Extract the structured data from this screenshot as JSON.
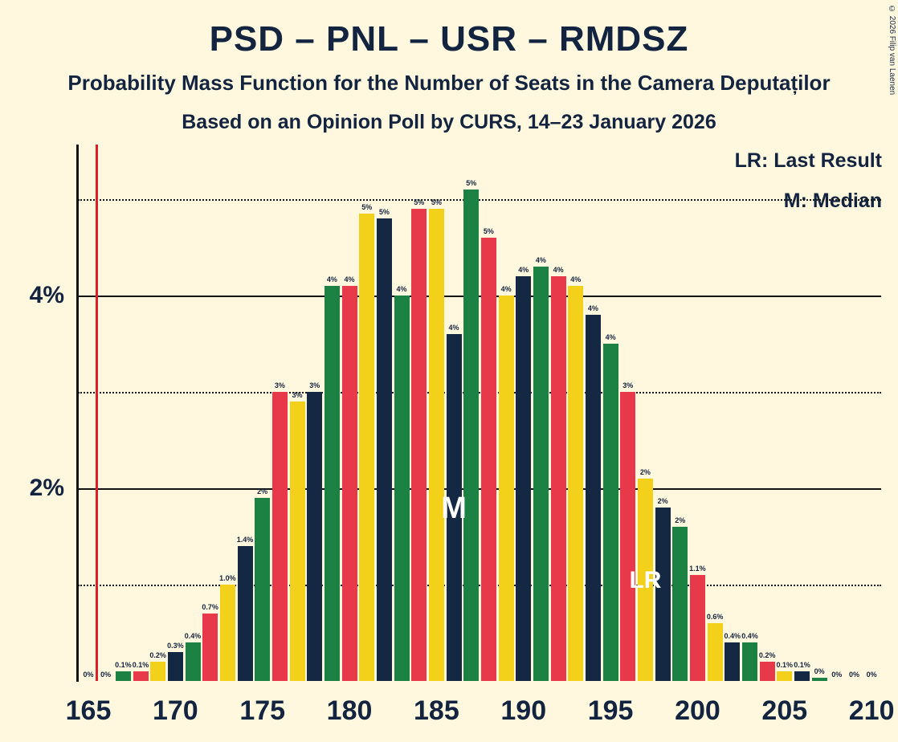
{
  "title": "PSD – PNL – USR – RMDSZ",
  "subtitle": "Probability Mass Function for the Number of Seats in the Camera Deputaților",
  "source_line": "Based on an Opinion Poll by CURS, 14–23 January 2026",
  "copyright": "© 2026 Filip van Laenen",
  "legend": {
    "lr": "LR: Last Result",
    "m": "M: Median"
  },
  "chart_data": {
    "type": "bar",
    "title": "PSD – PNL – USR – RMDSZ — Probability Mass Function for the Number of Seats in the Camera Deputaților",
    "xlabel": "",
    "ylabel": "",
    "ylim": [
      0,
      5.57
    ],
    "x_ticks": [
      165,
      170,
      175,
      180,
      185,
      190,
      195,
      200,
      205,
      210
    ],
    "y_solid_ticks": [
      {
        "value": 2,
        "label": "2%"
      },
      {
        "value": 4,
        "label": "4%"
      }
    ],
    "y_dotted_ticks": [
      1,
      3,
      5
    ],
    "x": [
      165,
      166,
      167,
      168,
      169,
      170,
      171,
      172,
      173,
      174,
      175,
      176,
      177,
      178,
      179,
      180,
      181,
      182,
      183,
      184,
      185,
      186,
      187,
      188,
      189,
      190,
      191,
      192,
      193,
      194,
      195,
      196,
      197,
      198,
      199,
      200,
      201,
      202,
      203,
      204,
      205,
      206,
      207,
      208,
      209,
      210
    ],
    "values": [
      0,
      0,
      0.1,
      0.1,
      0.2,
      0.3,
      0.4,
      0.7,
      1.0,
      1.4,
      1.9,
      3.0,
      2.9,
      3.0,
      4.1,
      4.1,
      4.85,
      4.8,
      4.0,
      4.9,
      4.9,
      3.6,
      5.1,
      4.6,
      4.0,
      4.2,
      4.3,
      4.2,
      4.1,
      3.8,
      3.5,
      3.0,
      2.1,
      1.8,
      1.6,
      1.1,
      0.6,
      0.4,
      0.4,
      0.2,
      0.1,
      0.1,
      0.03,
      0,
      0,
      0
    ],
    "bar_labels": [
      "0%",
      "0%",
      "0.1%",
      "0.1%",
      "0.2%",
      "0.3%",
      "0.4%",
      "0.7%",
      "1.0%",
      "1.4%",
      "2%",
      "3%",
      "3%",
      "3%",
      "4%",
      "4%",
      "5%",
      "5%",
      "4%",
      "5%",
      "5%",
      "4%",
      "5%",
      "5%",
      "4%",
      "4%",
      "4%",
      "4%",
      "4%",
      "4%",
      "4%",
      "3%",
      "2%",
      "2%",
      "2%",
      "1.1%",
      "0.6%",
      "0.4%",
      "0.4%",
      "0.2%",
      "0.1%",
      "0.1%",
      "0%",
      "0%",
      "0%",
      "0%"
    ],
    "color_cycle_by_seat_mod4": [
      "yellow",
      "navy",
      "green",
      "red"
    ],
    "colors": {
      "red": "#E8394A",
      "green": "#1C8243",
      "navy": "#152843",
      "yellow": "#F3D019"
    },
    "background_color": "#FFF8DE",
    "majority_line_color": "#DC1E28",
    "majority_line_seat": 165.5,
    "median_seat": 186,
    "median_label": "M",
    "last_result_seat": 197,
    "last_result_label": "LR"
  }
}
